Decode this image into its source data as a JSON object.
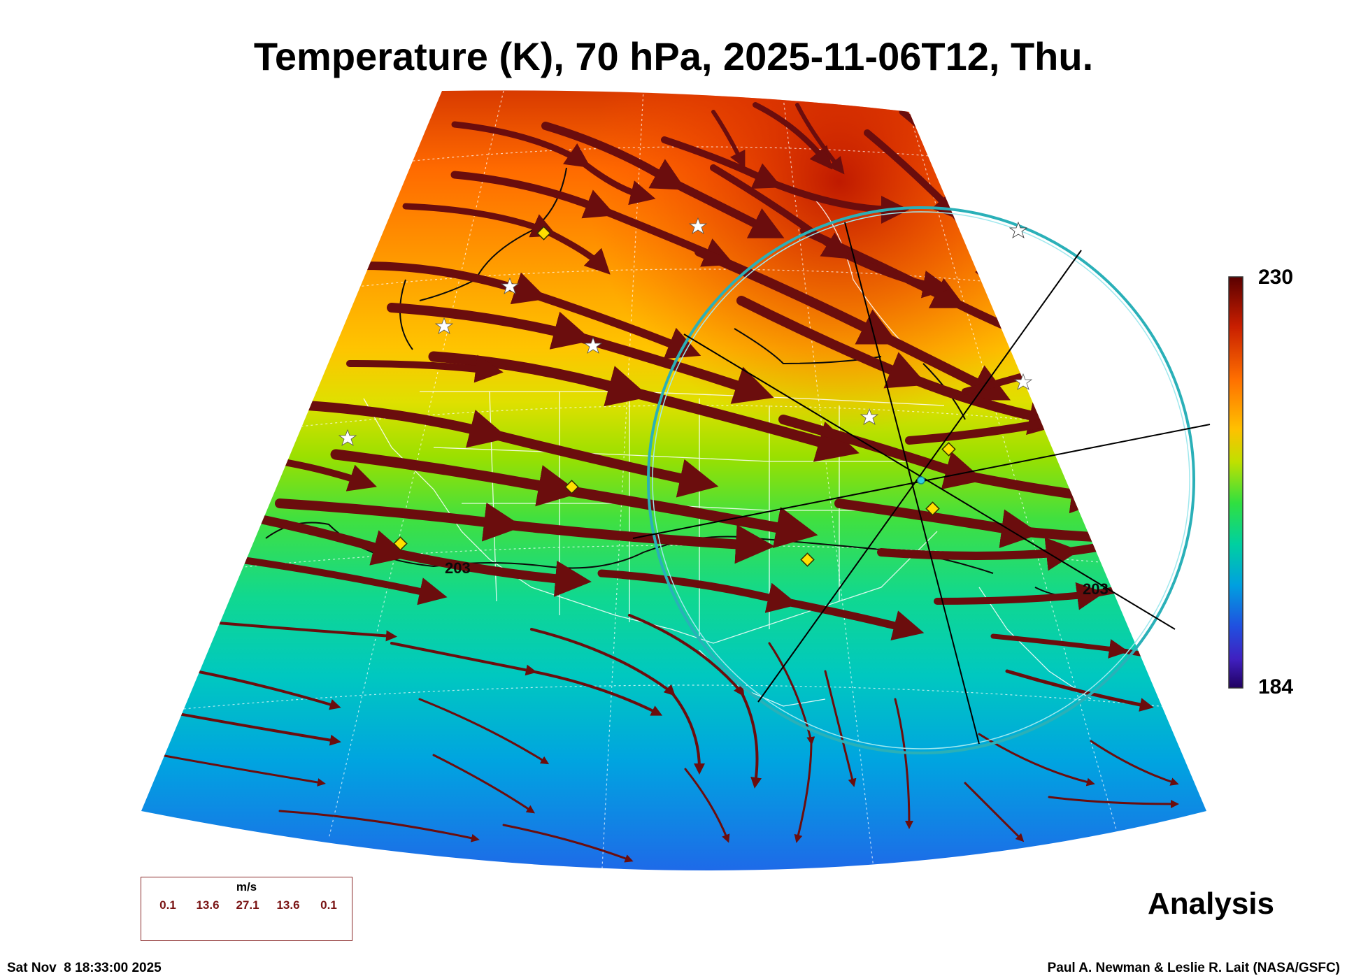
{
  "title": "Temperature (K), 70 hPa, 2025-11-06T12, Thu.",
  "colorbar": {
    "max_label": "230",
    "min_label": "184",
    "colors": [
      "#5a0000",
      "#c81e00",
      "#ff7000",
      "#ffc000",
      "#c0e000",
      "#30e040",
      "#00d0a0",
      "#00a0e0",
      "#2050e0",
      "#4020c0",
      "#200060"
    ]
  },
  "contour_labels": [
    "203",
    "203"
  ],
  "wind_legend": {
    "unit": "m/s",
    "values": [
      "0.1",
      "13.6",
      "27.1",
      "13.6",
      "0.1"
    ],
    "color": "#6b0d0d"
  },
  "analysis_label": "Analysis",
  "footer": {
    "timestamp": "Sat Nov  8 18:33:00 2025",
    "credit": "Paul A. Newman & Leslie R. Lait (NASA/GSFC)"
  },
  "overlay": {
    "circle_color": "#2ab0b8",
    "marker_color": "#ffe000",
    "star_color": "#ffffff"
  }
}
